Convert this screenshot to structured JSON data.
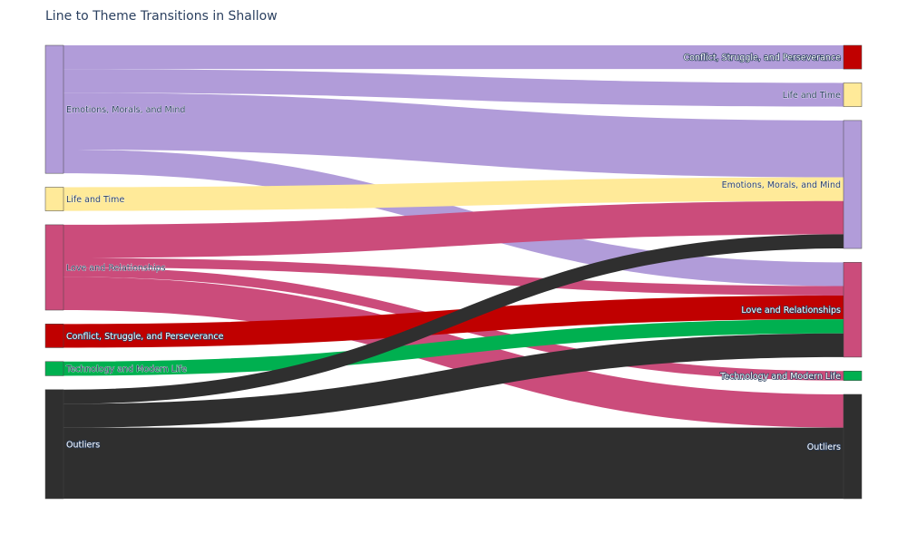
{
  "chart_data": {
    "type": "sankey",
    "title": "Line to Theme Transitions in Shallow",
    "source_nodes": [
      {
        "label": "Emotions, Morals, and Mind",
        "color": "#b19cd9"
      },
      {
        "label": "Life and Time",
        "color": "#ffea99"
      },
      {
        "label": "Love and Relationships",
        "color": "#cb4c7b"
      },
      {
        "label": "Conflict, Struggle, and Perseverance",
        "color": "#c00000"
      },
      {
        "label": "Technology and Modern Life",
        "color": "#00b050"
      },
      {
        "label": "Outliers",
        "color": "#2f2f2f"
      }
    ],
    "target_nodes": [
      {
        "label": "Conflict, Struggle, and Perseverance",
        "color": "#c00000"
      },
      {
        "label": "Life and Time",
        "color": "#ffea99"
      },
      {
        "label": "Emotions, Morals, and Mind",
        "color": "#b19cd9"
      },
      {
        "label": "Love and Relationships",
        "color": "#cb4c7b"
      },
      {
        "label": "Technology and Modern Life",
        "color": "#00b050"
      },
      {
        "label": "Outliers",
        "color": "#2f2f2f"
      }
    ],
    "links": [
      {
        "source": 0,
        "target": 0,
        "value": 5
      },
      {
        "source": 0,
        "target": 1,
        "value": 5
      },
      {
        "source": 0,
        "target": 2,
        "value": 12
      },
      {
        "source": 0,
        "target": 3,
        "value": 5
      },
      {
        "source": 1,
        "target": 2,
        "value": 5
      },
      {
        "source": 2,
        "target": 2,
        "value": 7
      },
      {
        "source": 2,
        "target": 3,
        "value": 2
      },
      {
        "source": 2,
        "target": 4,
        "value": 2
      },
      {
        "source": 2,
        "target": 5,
        "value": 7
      },
      {
        "source": 3,
        "target": 3,
        "value": 5
      },
      {
        "source": 4,
        "target": 3,
        "value": 3
      },
      {
        "source": 5,
        "target": 2,
        "value": 3
      },
      {
        "source": 5,
        "target": 3,
        "value": 5
      },
      {
        "source": 5,
        "target": 5,
        "value": 15
      }
    ],
    "link_colors": [
      "#b19cd9",
      "#b19cd9",
      "#b19cd9",
      "#b19cd9",
      "#ffea99",
      "#cb4c7b",
      "#cb4c7b",
      "#cb4c7b",
      "#cb4c7b",
      "#c00000",
      "#00b050",
      "#2f2f2f",
      "#2f2f2f",
      "#2f2f2f"
    ]
  }
}
